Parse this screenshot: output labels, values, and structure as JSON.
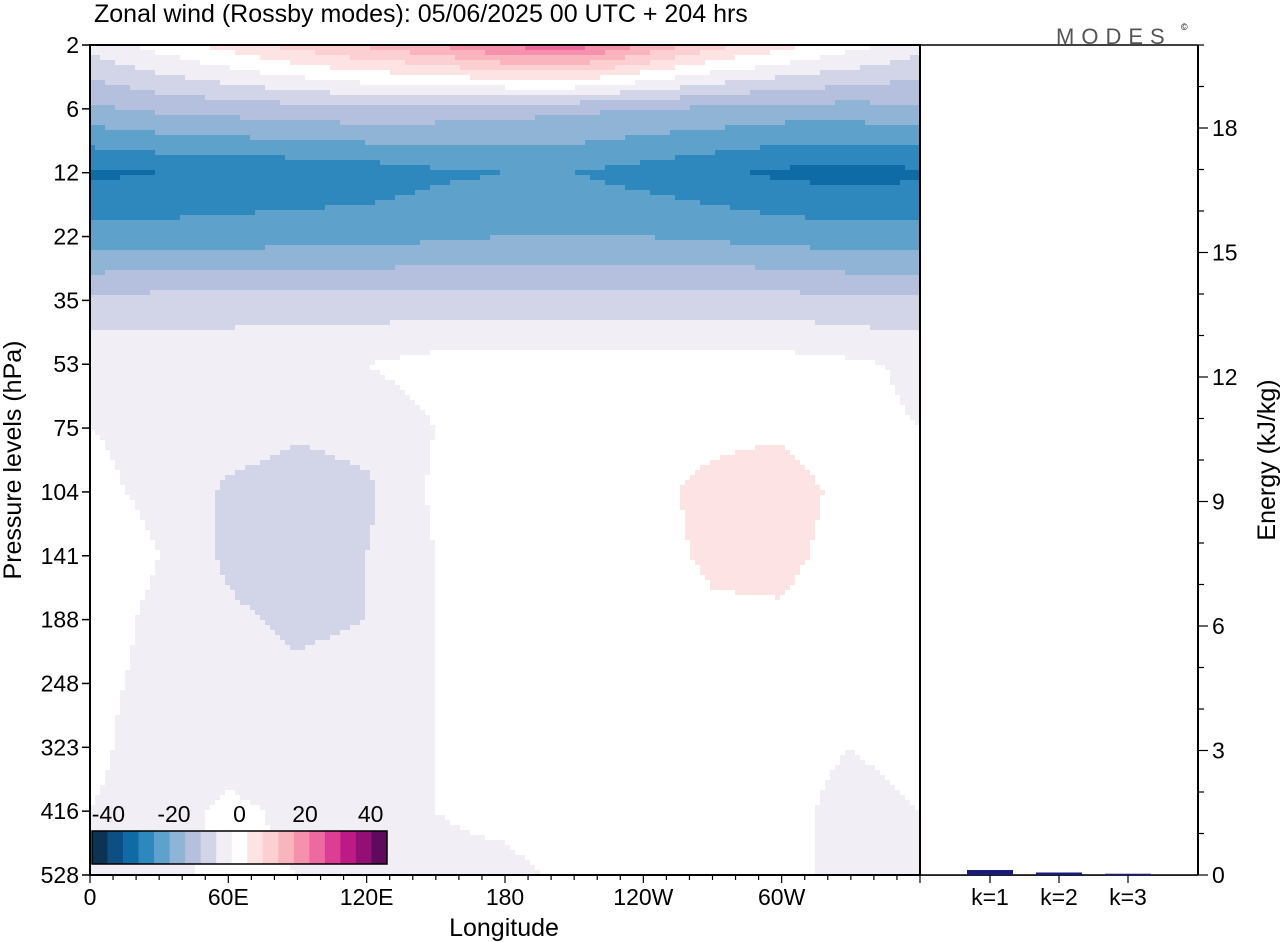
{
  "chart_data": [
    {
      "type": "heatmap",
      "title": "Zonal wind (Rossby modes):  05/06/2025  00 UTC  + 204 hrs",
      "xlabel": "Longitude",
      "ylabel": "Pressure levels (hPa)",
      "x_ticks": [
        {
          "label": "0",
          "lon": 0
        },
        {
          "label": "60E",
          "lon": 60
        },
        {
          "label": "120E",
          "lon": 120
        },
        {
          "label": "180",
          "lon": 180
        },
        {
          "label": "120W",
          "lon": 240
        },
        {
          "label": "60W",
          "lon": 300
        }
      ],
      "xlim": [
        0,
        360
      ],
      "y_levels": [
        "2",
        "6",
        "12",
        "22",
        "35",
        "53",
        "75",
        "104",
        "141",
        "188",
        "248",
        "323",
        "416",
        "528"
      ],
      "levels_top_to_bottom": true,
      "colorbar": {
        "tick_labels": [
          "-40",
          "-20",
          "0",
          "20",
          "40"
        ],
        "tick_values": [
          -40,
          -20,
          0,
          20,
          40
        ],
        "range": [
          -45,
          45
        ],
        "step": 5,
        "colors": [
          "#0c3354",
          "#0d4f82",
          "#0f6ba6",
          "#2e87bd",
          "#5ea2cc",
          "#8fb4d6",
          "#b4c0de",
          "#d2d5e8",
          "#f1eef5",
          "#ffffff",
          "#fde3e3",
          "#fccfd2",
          "#f9b4bd",
          "#f591ac",
          "#ec6aa0",
          "#dc3e94",
          "#bd1a85",
          "#921076",
          "#5e0b5e"
        ]
      },
      "field": {
        "lon": [
          0,
          30,
          60,
          90,
          120,
          150,
          180,
          210,
          240,
          270,
          300,
          330,
          360
        ],
        "rows": [
          {
            "level": "2",
            "u": [
              -3,
              2,
              7,
              12,
              16,
              20,
              26,
              28,
              20,
              12,
              7,
              2,
              -3
            ]
          },
          {
            "level": "6",
            "u": [
              -16,
              -14,
              -13,
              -12,
              -11,
              -12,
              -13,
              -14,
              -15,
              -16,
              -17,
              -17,
              -16
            ]
          },
          {
            "level": "12",
            "u": [
              -31,
              -30,
              -29,
              -29,
              -28,
              -26,
              -25,
              -25,
              -27,
              -29,
              -31,
              -32,
              -31
            ]
          },
          {
            "level": "22",
            "u": [
              -23,
              -23,
              -23,
              -22,
              -22,
              -21,
              -20,
              -20,
              -20,
              -21,
              -22,
              -23,
              -23
            ]
          },
          {
            "level": "35",
            "u": [
              -9,
              -8,
              -8,
              -8,
              -8,
              -8,
              -8,
              -8,
              -8,
              -8,
              -8,
              -9,
              -9
            ]
          },
          {
            "level": "53",
            "u": [
              -1,
              -1,
              -1,
              0,
              0,
              2,
              2,
              2,
              2,
              2,
              2,
              1,
              -1
            ]
          },
          {
            "level": "75",
            "u": [
              0,
              -1,
              -2,
              -4,
              -3,
              0,
              2,
              2,
              3,
              4,
              4,
              1,
              0
            ]
          },
          {
            "level": "104",
            "u": [
              1,
              -1,
              -6,
              -8,
              -6,
              1,
              3,
              4,
              4,
              6,
              8,
              3,
              1
            ]
          },
          {
            "level": "141",
            "u": [
              3,
              0,
              -6,
              -9,
              -5,
              0,
              3,
              5,
              3,
              6,
              7,
              2,
              3
            ]
          },
          {
            "level": "188",
            "u": [
              2,
              -1,
              -4,
              -6,
              -5,
              0,
              3,
              4,
              1,
              4,
              4,
              0,
              2
            ]
          },
          {
            "level": "248",
            "u": [
              1,
              -1,
              -3,
              -4,
              -3,
              0,
              3,
              3,
              1,
              3,
              2,
              0,
              1
            ]
          },
          {
            "level": "323",
            "u": [
              1,
              -2,
              -2,
              -3,
              -2,
              0,
              2,
              3,
              0,
              2,
              1,
              0,
              1
            ]
          },
          {
            "level": "416",
            "u": [
              0,
              -2,
              1,
              -1,
              -1,
              0,
              1,
              2,
              0,
              1,
              1,
              -1,
              0
            ]
          },
          {
            "level": "528",
            "u": [
              0,
              -1,
              1,
              0,
              0,
              -1,
              -1,
              1,
              0,
              1,
              1,
              -1,
              0
            ]
          }
        ]
      }
    },
    {
      "type": "bar",
      "ylabel": "Energy (kJ/kg)",
      "categories": [
        "k=1",
        "k=2",
        "k=3"
      ],
      "values": [
        0.12,
        0.06,
        0.03
      ],
      "ylim": [
        0,
        20
      ],
      "y_ticks": [
        "0",
        "3",
        "6",
        "9",
        "12",
        "15",
        "18"
      ],
      "bar_color": "#1a1a7a"
    }
  ],
  "brand": "MODES",
  "brand_mark": "©"
}
